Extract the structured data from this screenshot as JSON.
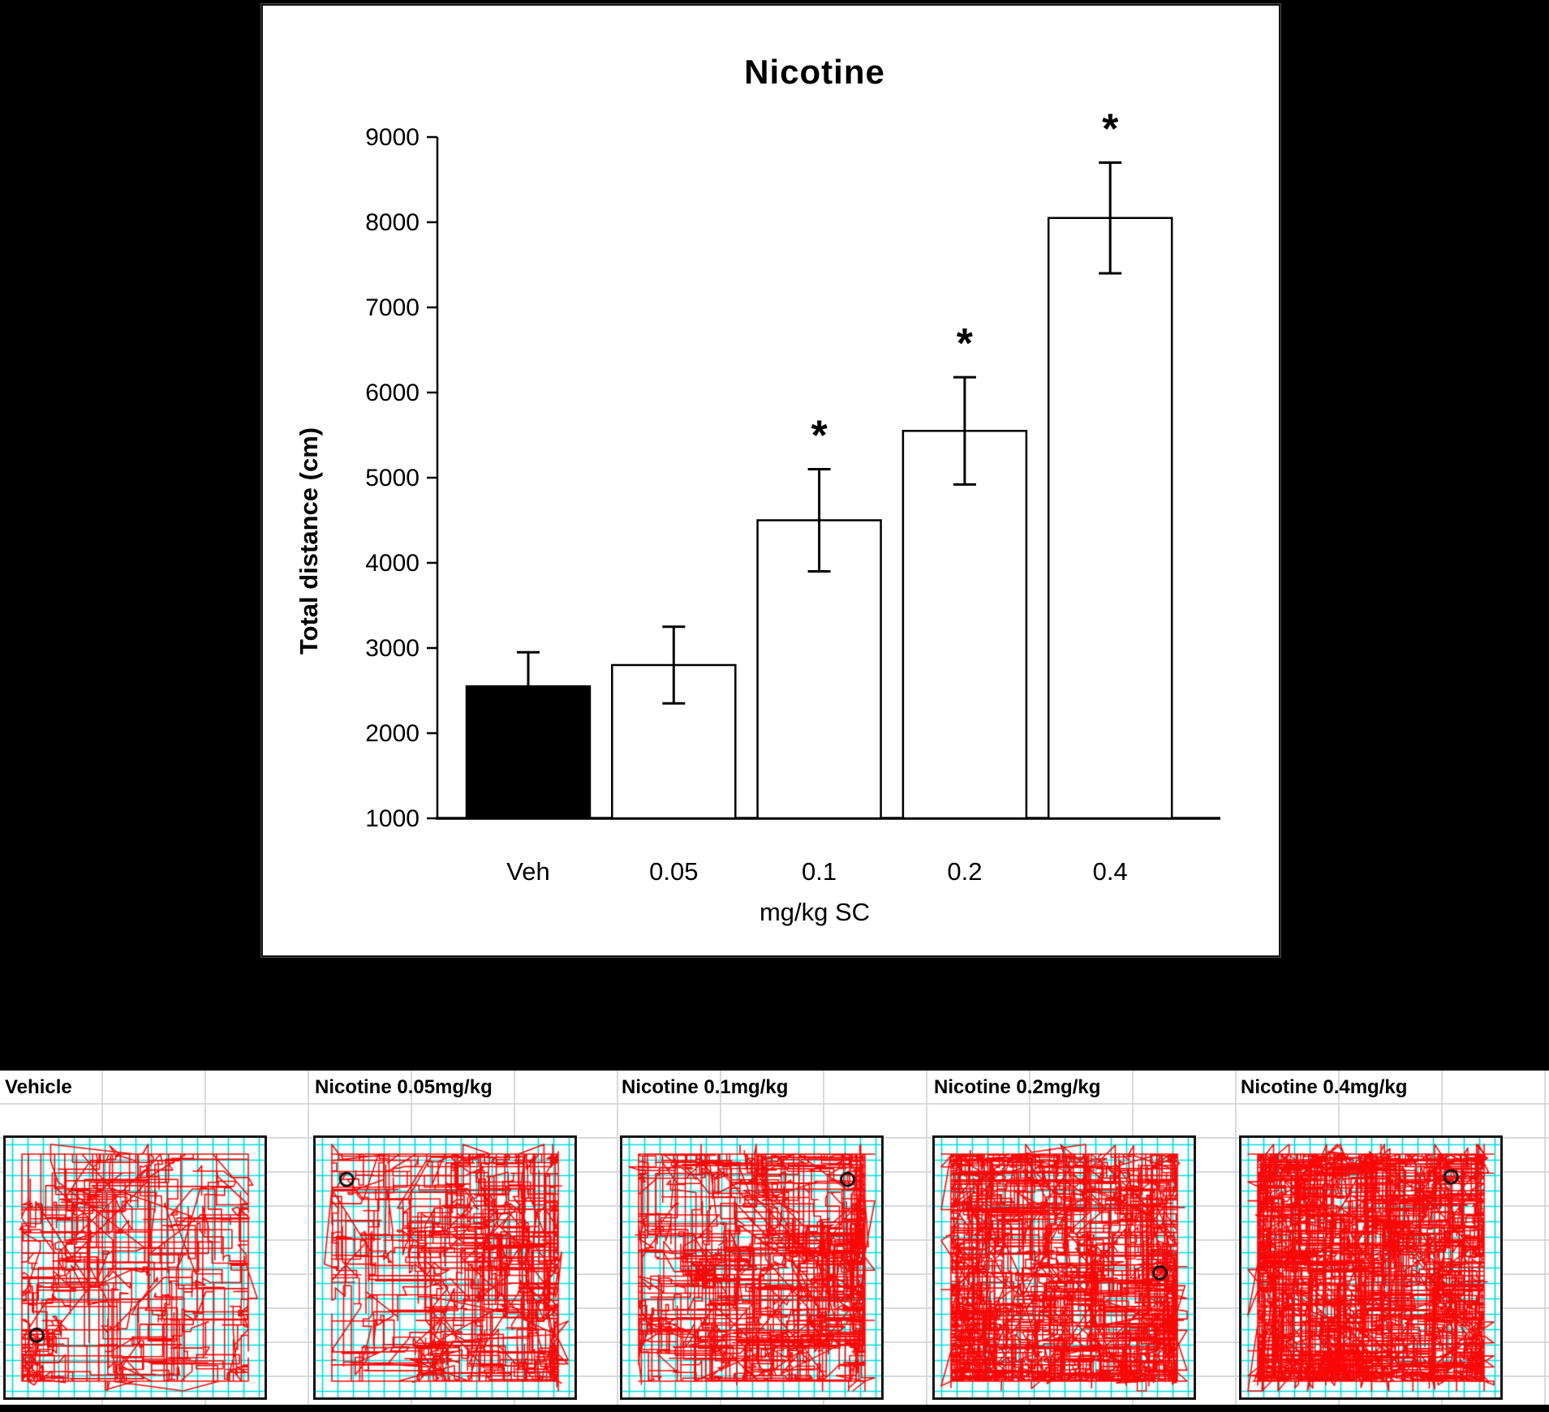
{
  "colors": {
    "background": "#000000",
    "chart_panel_bg": "#ffffff",
    "chart_panel_border": "#141414",
    "axis": "#000000",
    "bar_stroke": "#000000",
    "sheet_bg": "#ffffff",
    "sheet_gridline": "#d9d9e1",
    "arena_border": "#151515",
    "arena_grid": "#00dcdc",
    "trace": "#f90808",
    "marker_ring": "#0d0d0d",
    "text": "#000000"
  },
  "chart_data": {
    "type": "bar",
    "title": "Nicotine",
    "ylabel": "Total distance (cm)",
    "xlabel": "mg/kg SC",
    "categories": [
      "Veh",
      "0.05",
      "0.1",
      "0.2",
      "0.4"
    ],
    "values": [
      2550,
      2800,
      4500,
      5550,
      8050
    ],
    "sem": [
      400,
      450,
      600,
      630,
      650
    ],
    "significant": [
      false,
      false,
      true,
      true,
      true
    ],
    "sig_marker": "*",
    "bar_colors": [
      "#000000",
      "#ffffff",
      "#ffffff",
      "#ffffff",
      "#ffffff"
    ],
    "ylim": [
      1000,
      9000
    ],
    "yticks": [
      1000,
      2000,
      3000,
      4000,
      5000,
      6000,
      7000,
      8000,
      9000
    ],
    "grid": "off",
    "legend": "none"
  },
  "trace_sheet": {
    "panels": [
      {
        "label": "Vehicle",
        "marker": {
          "x": 0.12,
          "y": 0.76
        },
        "segments": 1700,
        "seed": 11
      },
      {
        "label": "Nicotine 0.05mg/kg",
        "marker": {
          "x": 0.12,
          "y": 0.16
        },
        "segments": 2500,
        "seed": 27
      },
      {
        "label": "Nicotine 0.1mg/kg",
        "marker": {
          "x": 0.87,
          "y": 0.16
        },
        "segments": 3300,
        "seed": 39
      },
      {
        "label": "Nicotine 0.2mg/kg",
        "marker": {
          "x": 0.87,
          "y": 0.52
        },
        "segments": 5200,
        "seed": 41
      },
      {
        "label": "Nicotine 0.4mg/kg",
        "marker": {
          "x": 0.81,
          "y": 0.15
        },
        "segments": 6200,
        "seed": 58
      }
    ]
  }
}
